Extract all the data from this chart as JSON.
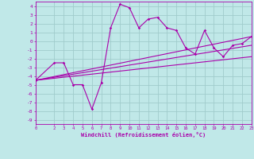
{
  "background_color": "#c0e8e8",
  "grid_color": "#a0cccc",
  "line_color": "#aa00aa",
  "xlabel": "Windchill (Refroidissement éolien,°C)",
  "xlim": [
    0,
    23
  ],
  "ylim": [
    -9.5,
    4.5
  ],
  "yticks": [
    4,
    3,
    2,
    1,
    0,
    -1,
    -2,
    -3,
    -4,
    -5,
    -6,
    -7,
    -8,
    -9
  ],
  "xticks": [
    0,
    2,
    3,
    4,
    5,
    6,
    7,
    8,
    9,
    10,
    11,
    12,
    13,
    14,
    15,
    16,
    17,
    18,
    19,
    20,
    21,
    22,
    23
  ],
  "series1_x": [
    0,
    2,
    3,
    4,
    5,
    6,
    7,
    8,
    9,
    10,
    11,
    12,
    13,
    14,
    15,
    16,
    17,
    18,
    19,
    20,
    21,
    22,
    23
  ],
  "series1_y": [
    -4.5,
    -2.5,
    -2.5,
    -5.0,
    -5.0,
    -7.8,
    -4.8,
    1.5,
    4.2,
    3.8,
    1.5,
    2.5,
    2.7,
    1.5,
    1.2,
    -0.8,
    -1.5,
    1.2,
    -0.8,
    -1.8,
    -0.5,
    -0.3,
    0.5
  ],
  "series2_x": [
    0,
    23
  ],
  "series2_y": [
    -4.5,
    -0.5
  ],
  "series3_x": [
    0,
    23
  ],
  "series3_y": [
    -4.5,
    0.5
  ],
  "series4_x": [
    0,
    23
  ],
  "series4_y": [
    -4.5,
    -1.8
  ]
}
